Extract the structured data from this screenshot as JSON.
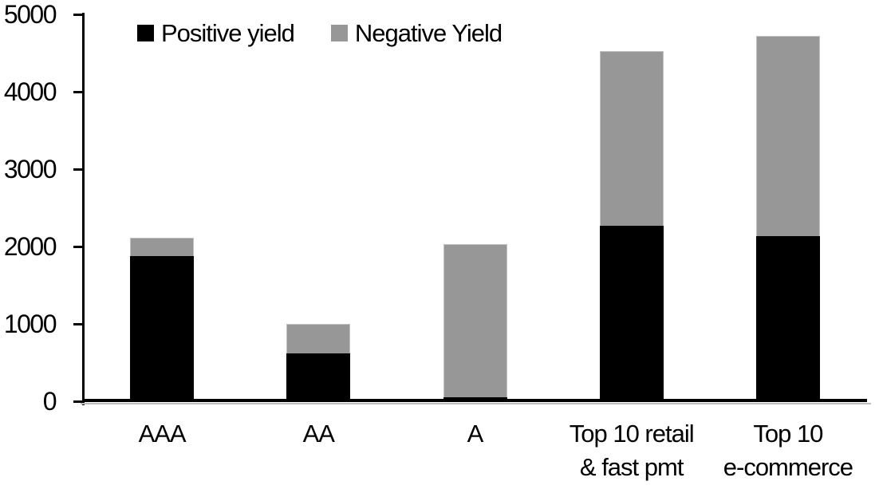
{
  "chart_data": {
    "type": "bar",
    "stacked": true,
    "title": "",
    "xlabel": "",
    "ylabel": "",
    "categories": [
      "AAA",
      "AA",
      "A",
      "Top 10 retail\n& fast pmt",
      "Top 10\ne-commerce"
    ],
    "series": [
      {
        "name": "Positive yield",
        "color": "#000000",
        "values": [
          1880,
          620,
          50,
          2270,
          2130
        ]
      },
      {
        "name": "Negative Yield",
        "color": "#979797",
        "values": [
          230,
          380,
          1980,
          2260,
          2590
        ]
      }
    ],
    "totals": [
      2110,
      1000,
      2030,
      4530,
      4720
    ],
    "ylim": [
      0,
      5000
    ],
    "yticks": [
      0,
      1000,
      2000,
      3000,
      4000,
      5000
    ],
    "grid": false,
    "legend_position": "top-left-inside"
  },
  "colors": {
    "positive_yield": "#000000",
    "negative_yield": "#979797",
    "axis": "#000000",
    "background": "#ffffff"
  },
  "legend": {
    "items": [
      {
        "label": "Positive yield",
        "color": "#000000"
      },
      {
        "label": "Negative Yield",
        "color": "#979797"
      }
    ]
  }
}
